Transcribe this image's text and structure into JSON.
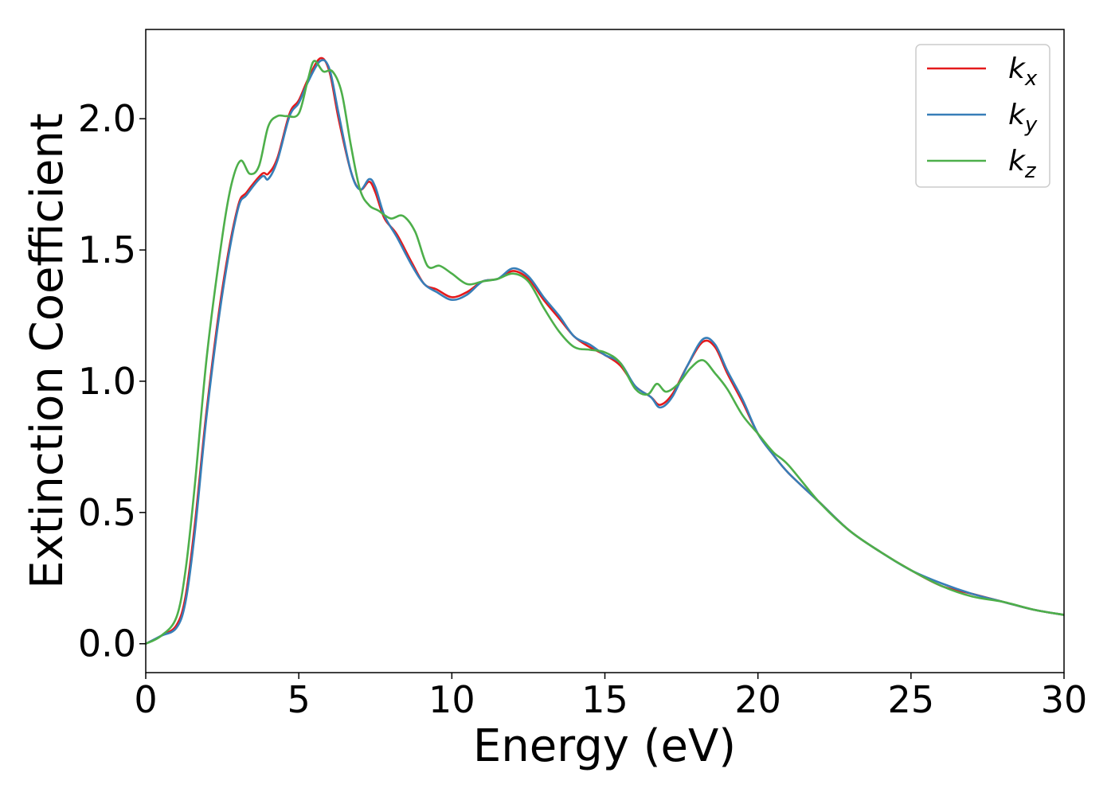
{
  "chart_data": {
    "type": "line",
    "title": "",
    "xlabel": "Energy (eV)",
    "ylabel": "Extinction Coefficient",
    "xlim": [
      0,
      30
    ],
    "ylim": [
      -0.11,
      2.34
    ],
    "xticks": [
      0,
      5,
      10,
      15,
      20,
      25,
      30
    ],
    "xtick_labels": [
      "0",
      "5",
      "10",
      "15",
      "20",
      "25",
      "30"
    ],
    "yticks": [
      0.0,
      0.5,
      1.0,
      1.5,
      2.0
    ],
    "ytick_labels": [
      "0.0",
      "0.5",
      "1.0",
      "1.5",
      "2.0"
    ],
    "grid": false,
    "legend_position": "top-right",
    "series": [
      {
        "name": "k_x",
        "label_main": "k",
        "label_sub": "x",
        "color": "#e41a1c",
        "x": [
          0,
          0.5,
          1.0,
          1.3,
          1.6,
          2.0,
          2.5,
          3.0,
          3.3,
          3.8,
          4.0,
          4.3,
          4.7,
          5.0,
          5.3,
          5.7,
          6.0,
          6.3,
          6.7,
          7.0,
          7.3,
          7.5,
          7.8,
          8.2,
          8.7,
          9.1,
          9.5,
          10.0,
          10.5,
          11.0,
          11.5,
          12.0,
          12.5,
          13.0,
          13.5,
          14.0,
          14.5,
          15.0,
          15.5,
          16.0,
          16.5,
          16.8,
          17.2,
          17.7,
          18.2,
          18.6,
          19.0,
          19.5,
          20.0,
          20.5,
          21.0,
          22.0,
          23.0,
          24.0,
          25.0,
          26.0,
          27.0,
          28.0,
          29.0,
          30.0
        ],
        "values": [
          0.0,
          0.03,
          0.07,
          0.18,
          0.45,
          0.9,
          1.35,
          1.66,
          1.72,
          1.79,
          1.79,
          1.85,
          2.02,
          2.07,
          2.15,
          2.23,
          2.18,
          2.0,
          1.8,
          1.73,
          1.76,
          1.72,
          1.62,
          1.56,
          1.45,
          1.37,
          1.35,
          1.32,
          1.34,
          1.38,
          1.39,
          1.42,
          1.39,
          1.31,
          1.24,
          1.17,
          1.13,
          1.1,
          1.06,
          0.98,
          0.94,
          0.91,
          0.95,
          1.06,
          1.15,
          1.13,
          1.03,
          0.92,
          0.8,
          0.72,
          0.65,
          0.54,
          0.43,
          0.35,
          0.28,
          0.22,
          0.19,
          0.16,
          0.13,
          0.11
        ]
      },
      {
        "name": "k_y",
        "label_main": "k",
        "label_sub": "y",
        "color": "#377eb8",
        "x": [
          0,
          0.5,
          1.0,
          1.3,
          1.6,
          2.0,
          2.5,
          3.0,
          3.3,
          3.8,
          4.0,
          4.3,
          4.7,
          5.0,
          5.3,
          5.7,
          6.0,
          6.3,
          6.7,
          7.0,
          7.3,
          7.5,
          7.8,
          8.2,
          8.7,
          9.1,
          9.5,
          10.0,
          10.5,
          11.0,
          11.5,
          12.0,
          12.5,
          13.0,
          13.5,
          14.0,
          14.5,
          15.0,
          15.5,
          16.0,
          16.5,
          16.8,
          17.2,
          17.7,
          18.2,
          18.6,
          19.0,
          19.5,
          20.0,
          20.5,
          21.0,
          22.0,
          23.0,
          24.0,
          25.0,
          26.0,
          27.0,
          28.0,
          29.0,
          30.0
        ],
        "values": [
          0.0,
          0.03,
          0.06,
          0.16,
          0.42,
          0.88,
          1.33,
          1.65,
          1.71,
          1.78,
          1.77,
          1.84,
          2.01,
          2.06,
          2.14,
          2.22,
          2.19,
          2.02,
          1.8,
          1.73,
          1.77,
          1.74,
          1.63,
          1.55,
          1.44,
          1.37,
          1.34,
          1.31,
          1.33,
          1.38,
          1.39,
          1.43,
          1.4,
          1.32,
          1.25,
          1.17,
          1.14,
          1.1,
          1.07,
          0.98,
          0.94,
          0.9,
          0.94,
          1.06,
          1.16,
          1.14,
          1.04,
          0.93,
          0.8,
          0.72,
          0.65,
          0.54,
          0.43,
          0.35,
          0.28,
          0.23,
          0.19,
          0.16,
          0.13,
          0.11
        ]
      },
      {
        "name": "k_z",
        "label_main": "k",
        "label_sub": "z",
        "color": "#4daf4a",
        "x": [
          0,
          0.5,
          1.0,
          1.3,
          1.6,
          2.0,
          2.5,
          2.8,
          3.1,
          3.4,
          3.7,
          4.0,
          4.3,
          4.6,
          5.0,
          5.3,
          5.5,
          5.8,
          6.1,
          6.4,
          6.7,
          7.0,
          7.3,
          7.6,
          8.0,
          8.4,
          8.8,
          9.2,
          9.6,
          10.0,
          10.5,
          11.0,
          11.5,
          12.0,
          12.5,
          13.0,
          13.5,
          14.0,
          14.5,
          15.0,
          15.5,
          16.0,
          16.4,
          16.7,
          17.0,
          17.4,
          17.8,
          18.2,
          18.6,
          19.0,
          19.5,
          20.0,
          20.5,
          21.0,
          22.0,
          23.0,
          24.0,
          25.0,
          26.0,
          27.0,
          28.0,
          29.0,
          30.0
        ],
        "values": [
          0.0,
          0.03,
          0.1,
          0.28,
          0.6,
          1.1,
          1.55,
          1.75,
          1.84,
          1.79,
          1.82,
          1.97,
          2.01,
          2.01,
          2.02,
          2.15,
          2.22,
          2.18,
          2.18,
          2.1,
          1.9,
          1.73,
          1.67,
          1.65,
          1.62,
          1.63,
          1.57,
          1.44,
          1.44,
          1.41,
          1.37,
          1.38,
          1.39,
          1.41,
          1.38,
          1.28,
          1.19,
          1.13,
          1.12,
          1.11,
          1.07,
          0.97,
          0.95,
          0.99,
          0.96,
          0.99,
          1.05,
          1.08,
          1.03,
          0.97,
          0.87,
          0.8,
          0.73,
          0.68,
          0.54,
          0.43,
          0.35,
          0.28,
          0.22,
          0.18,
          0.16,
          0.13,
          0.11
        ]
      }
    ]
  }
}
